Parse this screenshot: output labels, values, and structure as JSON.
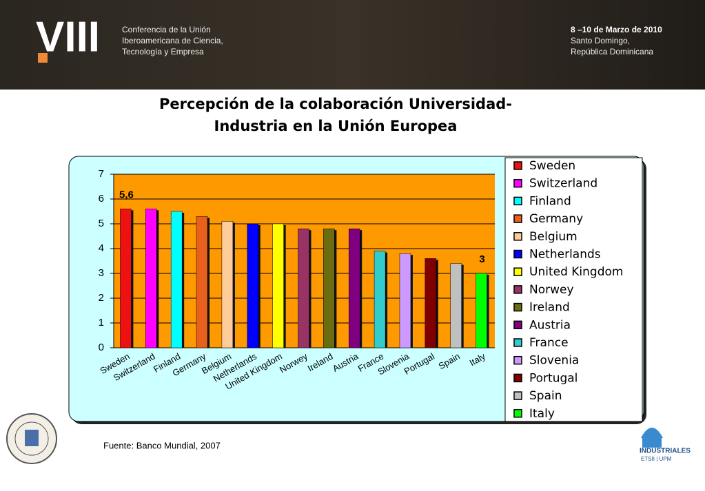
{
  "header": {
    "logo": "VIII",
    "conference": [
      "Conferencia de la Unión",
      "Iberoamericana de Ciencia,",
      "Tecnología y Empresa"
    ],
    "event": [
      "8 –10 de Marzo de 2010",
      "Santo Domingo,",
      "República Dominicana"
    ]
  },
  "chart_data": {
    "type": "bar",
    "title": [
      "Percepción de la colaboración Universidad-",
      "Industria en la Unión Europea"
    ],
    "categories": [
      "Sweden",
      "Switzerland",
      "Finland",
      "Germany",
      "Belgium",
      "Netherlands",
      "United Kingdom",
      "Norwey",
      "Ireland",
      "Austria",
      "France",
      "Slovenia",
      "Portugal",
      "Spain",
      "Italy"
    ],
    "values": [
      5.6,
      5.6,
      5.5,
      5.3,
      5.1,
      5.0,
      5.0,
      4.8,
      4.8,
      4.8,
      3.9,
      3.8,
      3.6,
      3.4,
      3.0
    ],
    "value_labels": [
      "5,6",
      null,
      null,
      null,
      null,
      null,
      null,
      null,
      null,
      null,
      null,
      null,
      null,
      null,
      "3"
    ],
    "colors": [
      "#ee1111",
      "#ff00ff",
      "#00ffff",
      "#e8601c",
      "#ffcc99",
      "#0000ff",
      "#ffff00",
      "#993366",
      "#6b6b10",
      "#800080",
      "#33cccc",
      "#cc99ff",
      "#800000",
      "#c0c0c0",
      "#00ff00"
    ],
    "ylim": [
      0,
      7
    ],
    "yticks": [
      0,
      1,
      2,
      3,
      4,
      5,
      6,
      7
    ],
    "grid": true,
    "legend": "right"
  },
  "footer": {
    "source": "Fuente: Banco Mundial, 2007",
    "school": "INDUSTRIALES",
    "school_sub": "ETSII | UPM"
  }
}
